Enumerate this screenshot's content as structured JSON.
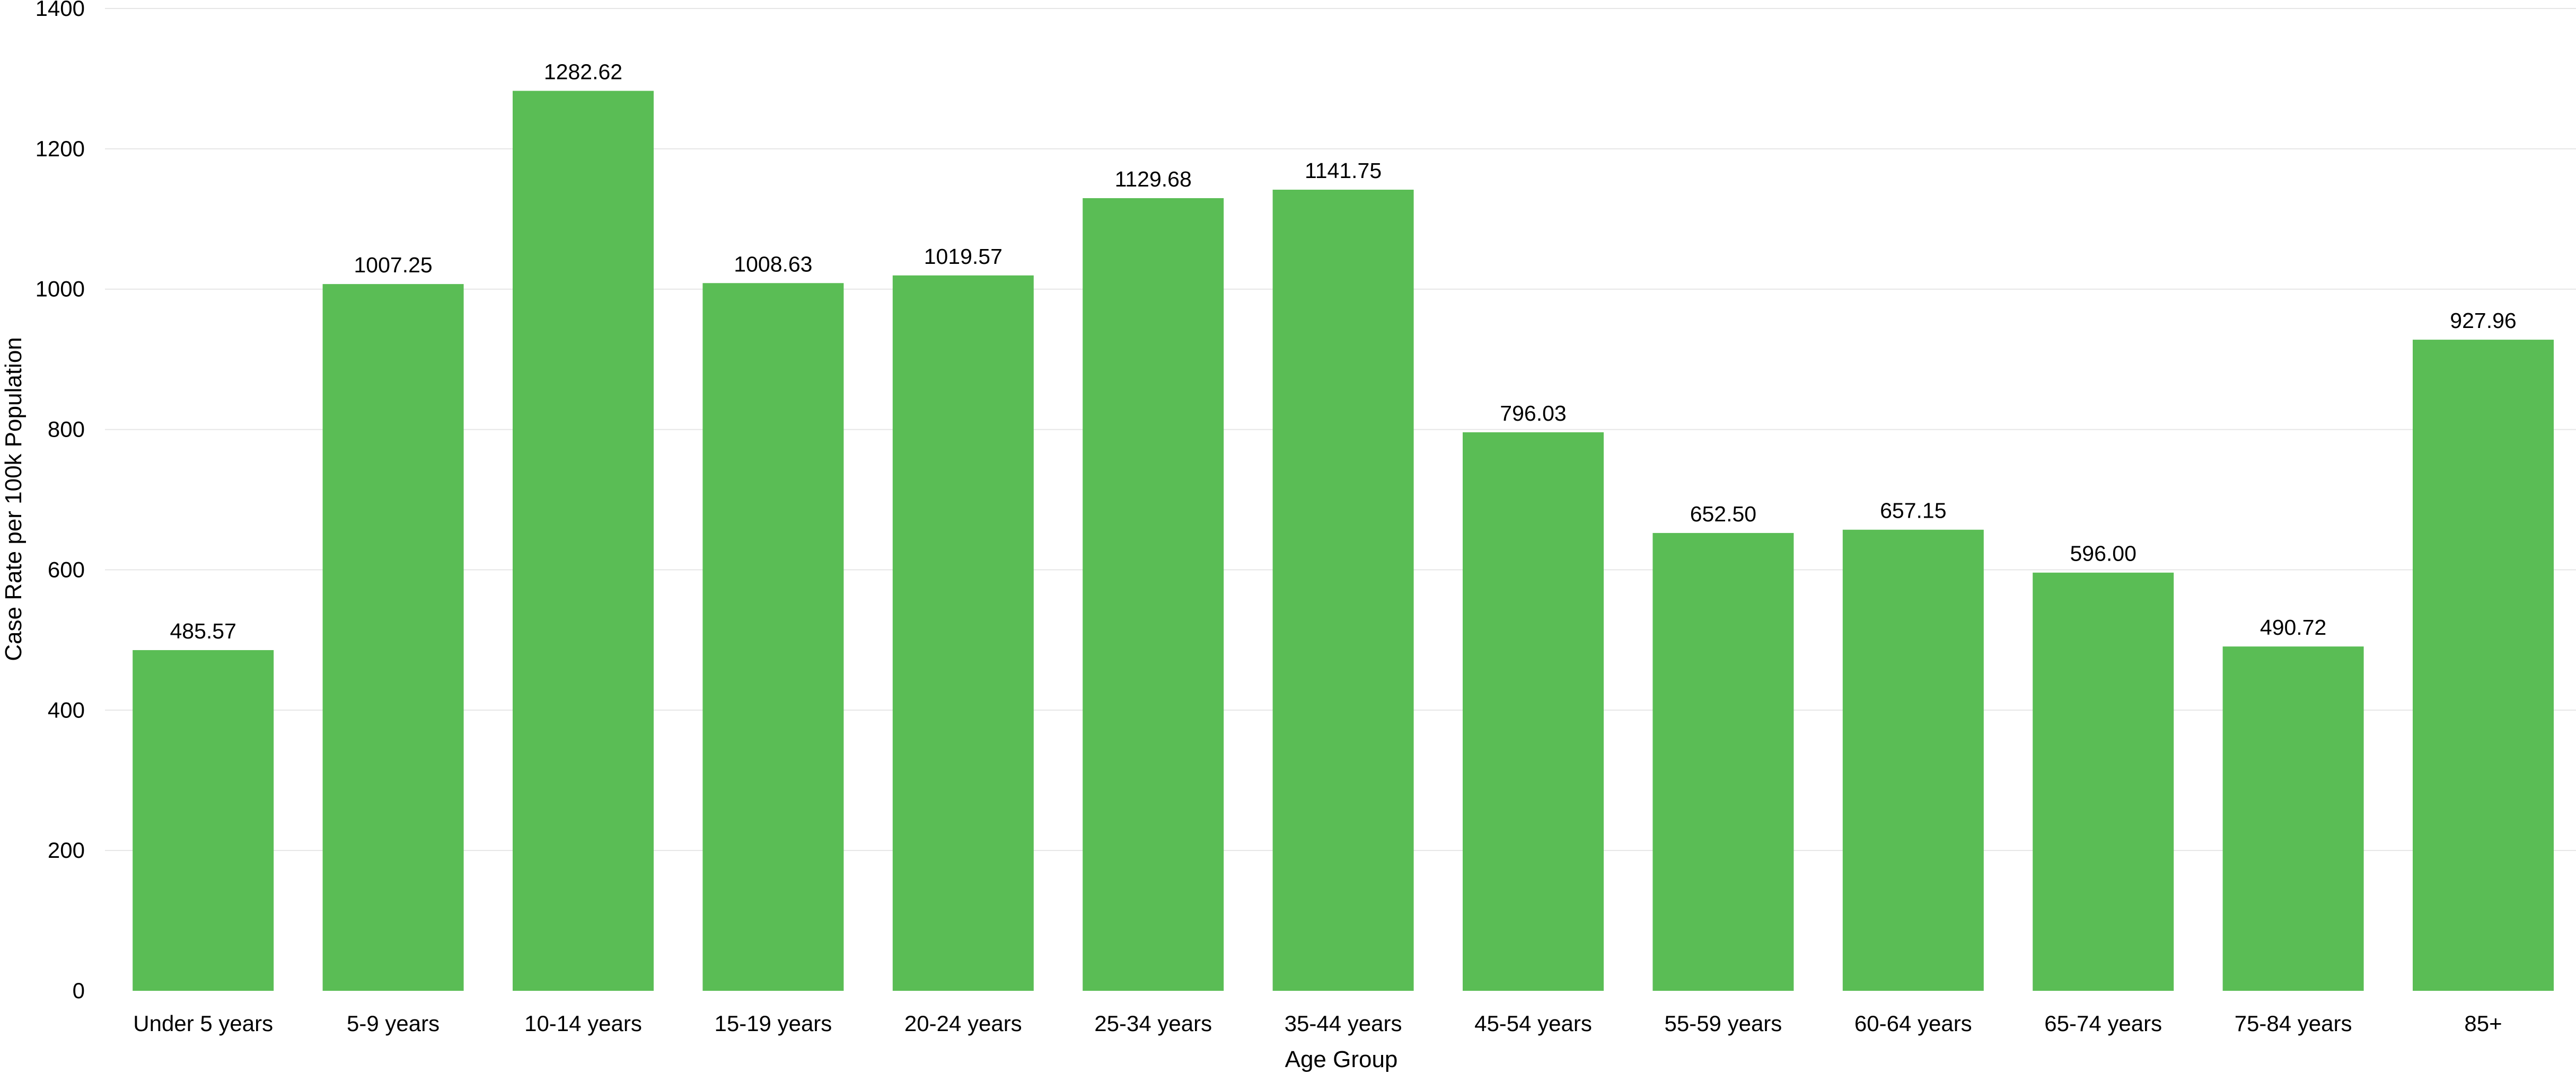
{
  "chart_data": {
    "type": "bar",
    "title": "",
    "xlabel": "Age Group",
    "ylabel": "Case Rate per 100k Population",
    "ylim": [
      0,
      1400
    ],
    "yticks": [
      0,
      200,
      400,
      600,
      800,
      1000,
      1200,
      1400
    ],
    "grid": true,
    "legend": "none",
    "bar_color": "#5abd55",
    "categories": [
      "Under 5 years",
      "5-9 years",
      "10-14 years",
      "15-19 years",
      "20-24 years",
      "25-34 years",
      "35-44 years",
      "45-54 years",
      "55-59 years",
      "60-64 years",
      "65-74 years",
      "75-84 years",
      "85+"
    ],
    "values": [
      485.57,
      1007.25,
      1282.62,
      1008.63,
      1019.57,
      1129.68,
      1141.75,
      796.03,
      652.5,
      657.15,
      596.0,
      490.72,
      927.96
    ],
    "value_labels": [
      "485.57",
      "1007.25",
      "1282.62",
      "1008.63",
      "1019.57",
      "1129.68",
      "1141.75",
      "796.03",
      "652.50",
      "657.15",
      "596.00",
      "490.72",
      "927.96"
    ]
  }
}
